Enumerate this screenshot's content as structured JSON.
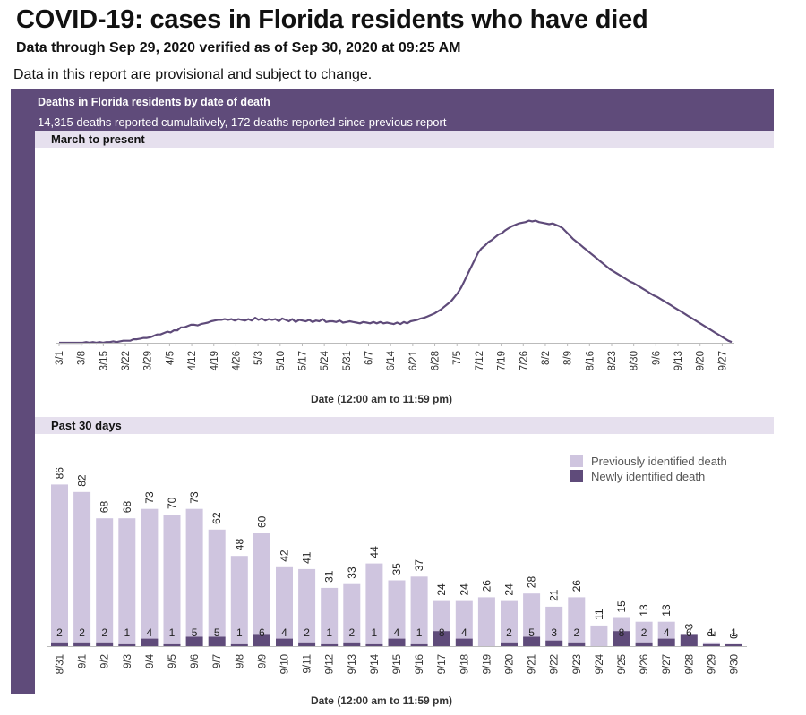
{
  "header": {
    "title": "COVID-19: cases in Florida residents who have died",
    "subtitle": "Data through Sep 29, 2020 verified as of Sep 30, 2020 at 09:25 AM",
    "note": "Data in this report are provisional and subject to change."
  },
  "panel": {
    "title": "Deaths in Florida residents by date of death",
    "summary": "14,315 deaths reported cumulatively, 172 deaths reported since previous report"
  },
  "colors": {
    "panel": "#5f4b7a",
    "strip": "#e6e0ee",
    "line": "#5f4b7a",
    "previous": "#cfc5df",
    "new": "#5f4b7a"
  },
  "chart_data": [
    {
      "type": "line",
      "section_label": "March to present",
      "xlabel": "Date (12:00 am to 11:59 pm)",
      "ylabel": "",
      "grid": false,
      "x_ticks": [
        "3/1",
        "3/8",
        "3/15",
        "3/22",
        "3/29",
        "4/5",
        "4/12",
        "4/19",
        "4/26",
        "5/3",
        "5/10",
        "5/17",
        "5/24",
        "5/31",
        "6/7",
        "6/14",
        "6/21",
        "6/28",
        "7/5",
        "7/12",
        "7/19",
        "7/26",
        "8/2",
        "8/9",
        "8/16",
        "8/23",
        "8/30",
        "9/6",
        "9/13",
        "9/20",
        "9/27"
      ],
      "ylim": [
        0,
        200
      ],
      "series": [
        {
          "values": [
            0,
            0,
            0,
            0,
            0,
            0,
            0,
            0,
            1,
            0,
            1,
            0,
            1,
            0,
            1,
            1,
            2,
            1,
            2,
            3,
            3,
            3,
            5,
            5,
            6,
            7,
            7,
            8,
            10,
            12,
            12,
            14,
            16,
            15,
            18,
            18,
            22,
            22,
            24,
            26,
            26,
            25,
            27,
            28,
            29,
            31,
            32,
            33,
            33,
            34,
            33,
            34,
            32,
            34,
            33,
            32,
            34,
            32,
            36,
            33,
            35,
            32,
            34,
            33,
            34,
            31,
            35,
            33,
            31,
            34,
            30,
            33,
            32,
            31,
            33,
            30,
            32,
            31,
            34,
            30,
            31,
            31,
            30,
            32,
            29,
            30,
            31,
            30,
            29,
            28,
            30,
            29,
            28,
            30,
            28,
            30,
            28,
            29,
            28,
            27,
            29,
            27,
            30,
            28,
            31,
            32,
            33,
            35,
            36,
            38,
            40,
            42,
            45,
            48,
            52,
            56,
            60,
            66,
            72,
            80,
            90,
            100,
            110,
            120,
            130,
            136,
            140,
            145,
            148,
            152,
            156,
            158,
            162,
            165,
            168,
            170,
            172,
            173,
            174,
            176,
            175,
            176,
            174,
            173,
            172,
            171,
            172,
            170,
            168,
            165,
            160,
            155,
            150,
            146,
            142,
            138,
            134,
            130,
            126,
            122,
            118,
            114,
            110,
            106,
            103,
            100,
            97,
            94,
            91,
            88,
            86,
            83,
            80,
            77,
            74,
            71,
            68,
            66,
            63,
            60,
            57,
            54,
            51,
            48,
            45,
            42,
            39,
            36,
            33,
            30,
            27,
            24,
            21,
            18,
            15,
            12,
            9,
            6,
            3,
            1
          ]
        }
      ]
    },
    {
      "type": "bar",
      "stacked": true,
      "section_label": "Past 30 days",
      "xlabel": "Date (12:00 am to 11:59 pm)",
      "ylabel": "",
      "grid": false,
      "legend_position": "top-right",
      "ylim": [
        0,
        90
      ],
      "categories": [
        "8/31",
        "9/1",
        "9/2",
        "9/3",
        "9/4",
        "9/5",
        "9/6",
        "9/7",
        "9/8",
        "9/9",
        "9/10",
        "9/11",
        "9/12",
        "9/13",
        "9/14",
        "9/15",
        "9/16",
        "9/17",
        "9/18",
        "9/19",
        "9/20",
        "9/21",
        "9/22",
        "9/23",
        "9/24",
        "9/25",
        "9/26",
        "9/27",
        "9/28",
        "9/29",
        "9/30"
      ],
      "series": [
        {
          "name": "Previously identified death",
          "values": [
            84,
            80,
            66,
            67,
            69,
            69,
            68,
            57,
            47,
            54,
            38,
            39,
            30,
            31,
            43,
            31,
            36,
            16,
            20,
            26,
            22,
            23,
            18,
            24,
            11,
            7,
            11,
            9,
            -3,
            1,
            -1
          ]
        },
        {
          "name": "Newly identified death",
          "values": [
            2,
            2,
            2,
            1,
            4,
            1,
            5,
            5,
            1,
            6,
            4,
            2,
            1,
            2,
            1,
            4,
            1,
            8,
            4,
            0,
            2,
            5,
            3,
            2,
            0,
            8,
            2,
            4,
            6,
            1,
            1
          ]
        }
      ],
      "totals": [
        86,
        82,
        68,
        68,
        73,
        70,
        73,
        62,
        48,
        60,
        42,
        41,
        31,
        33,
        44,
        35,
        37,
        24,
        24,
        26,
        24,
        28,
        21,
        26,
        11,
        15,
        13,
        13,
        3,
        2,
        0
      ],
      "new_labels": [
        "2",
        "2",
        "2",
        "1",
        "4",
        "1",
        "5",
        "5",
        "1",
        "6",
        "4",
        "2",
        "1",
        "2",
        "1",
        "4",
        "1",
        "8",
        "4",
        "",
        "2",
        "5",
        "3",
        "2",
        "",
        "8",
        "2",
        "4",
        "6",
        "1",
        "1"
      ]
    }
  ]
}
